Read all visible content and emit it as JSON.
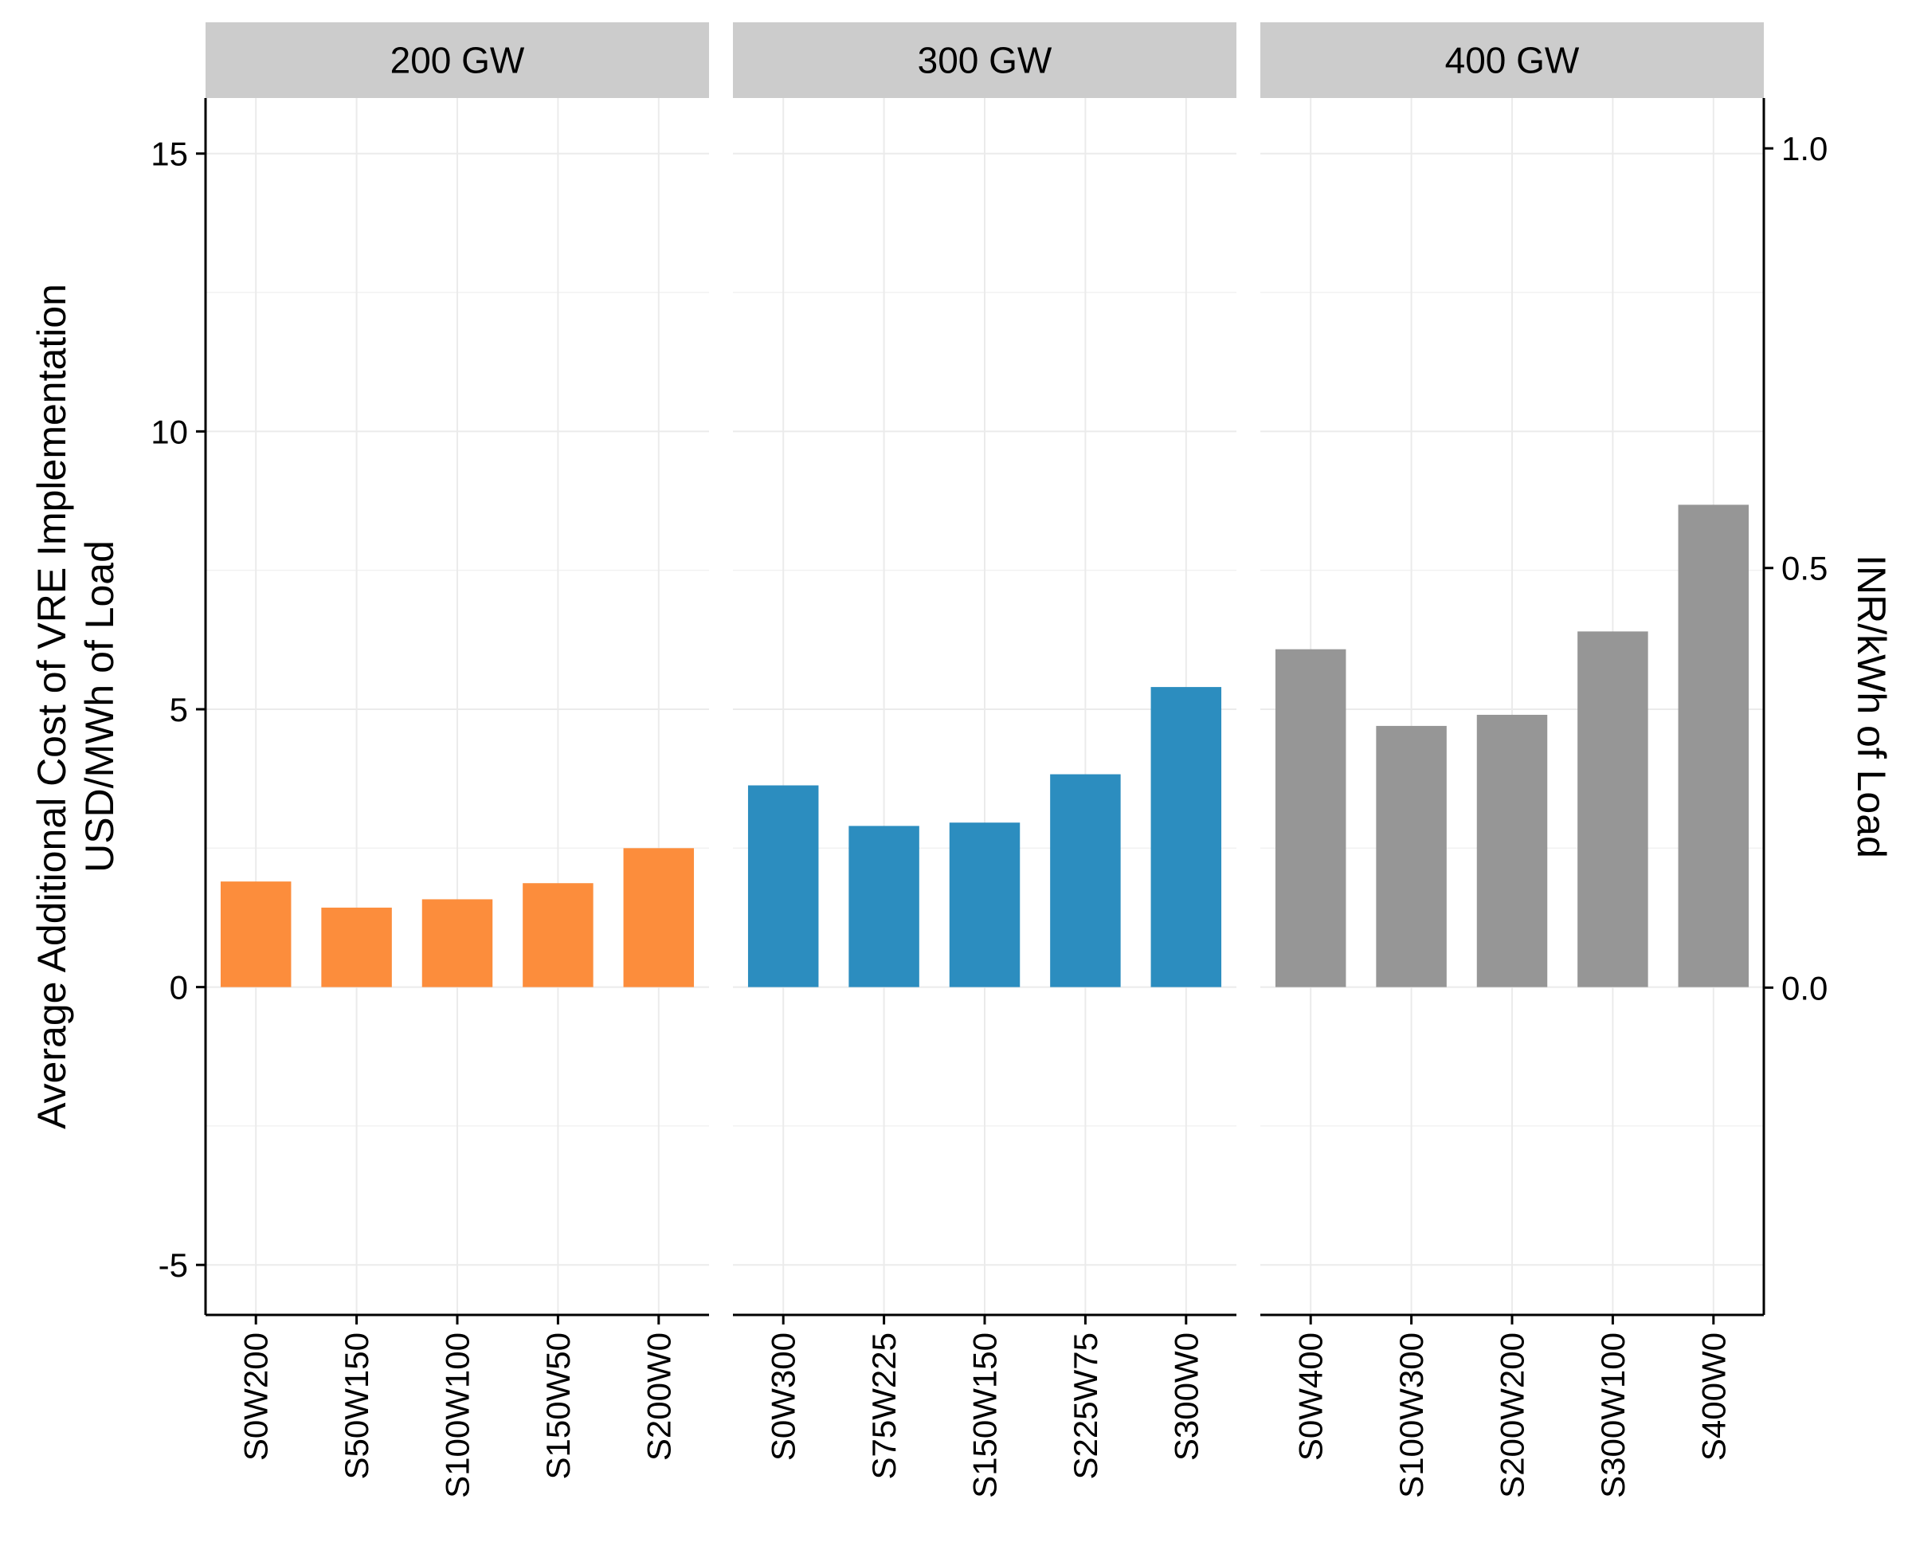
{
  "chart_data": {
    "type": "bar",
    "y_axis": {
      "title_lines": [
        "Average Additional Cost of VRE Implementation",
        "USD/MWh of Load"
      ],
      "ylim": [
        -5.9,
        16
      ],
      "ticks": [
        -5,
        0,
        5,
        10,
        15
      ]
    },
    "secondary_y_axis": {
      "title": "INR/kWh of Load",
      "ylim": [
        -0.39,
        1.06
      ],
      "ticks": [
        "0.0",
        "0.5",
        "1.0"
      ],
      "tick_values": [
        0.0,
        0.5,
        1.0
      ]
    },
    "grid": true,
    "panels": [
      {
        "label": "200 GW",
        "color": "#FC8D3C",
        "categories": [
          "S0W200",
          "S50W150",
          "S100W100",
          "S150W50",
          "S200W0"
        ],
        "values": [
          1.9,
          1.43,
          1.58,
          1.87,
          2.5
        ]
      },
      {
        "label": "300 GW",
        "color": "#2C8DBF",
        "categories": [
          "S0W300",
          "S75W225",
          "S150W150",
          "S225W75",
          "S300W0"
        ],
        "values": [
          3.63,
          2.9,
          2.96,
          3.83,
          5.4
        ]
      },
      {
        "label": "400 GW",
        "color": "#969696",
        "categories": [
          "S0W400",
          "S100W300",
          "S200W200",
          "S300W100",
          "S400W0"
        ],
        "values": [
          6.08,
          4.7,
          4.9,
          6.4,
          8.68
        ]
      }
    ]
  }
}
